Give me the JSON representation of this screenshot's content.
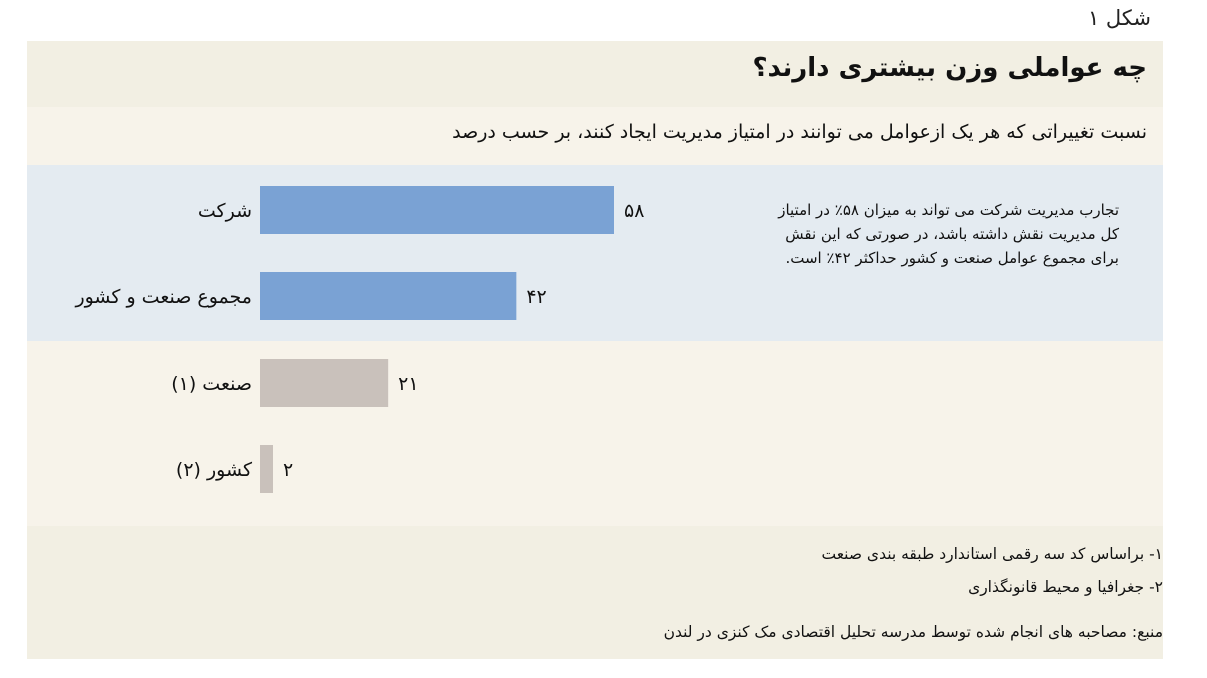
{
  "figure_label": "شکل ۱",
  "colors": {
    "highlight_bar": "#7aa2d4",
    "secondary_bar": "#c9c1bb"
  },
  "annotation": {
    "lines": [
      "تجارب مدیریت شرکت می تواند به میزان ۵۸٪ در امتیاز",
      "کل مدیریت نقش داشته باشد، در صورتی که این نقش",
      "برای مجموع عوامل صنعت و کشور حداکثر ۴۲٪ است."
    ]
  },
  "notes": {
    "note1": "۱- براساس کد سه رقمی استاندارد طبقه بندی صنعت",
    "note2": "۲- جغرافیا و محیط قانونگذاری",
    "source": "منبع: مصاحبه های انجام شده توسط مدرسه تحلیل اقتصادی مک کنزی در لندن"
  },
  "chart_data": {
    "type": "bar",
    "orientation": "horizontal",
    "title": "چه عواملی وزن بیشتری دارند؟",
    "subtitle": "نسبت تغییراتی که هر یک ازعوامل می توانند در امتیاز مدیریت ایجاد کنند، بر حسب درصد",
    "unit": "درصد",
    "categories": [
      "شرکت",
      "مجموع صنعت و کشور",
      "صنعت (۱)",
      "کشور (۲)"
    ],
    "values": [
      58,
      42,
      21,
      2
    ],
    "value_labels": [
      "۵۸",
      "۴۲",
      "۲۱",
      "۲"
    ],
    "highlighted": [
      true,
      true,
      false,
      false
    ],
    "xlim": [
      0,
      58
    ],
    "grid": false,
    "legend": "none"
  }
}
